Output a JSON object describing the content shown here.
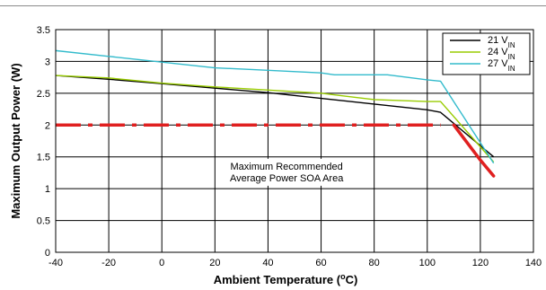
{
  "chart_data": {
    "type": "line",
    "xlabel": "Ambient Temperature (",
    "xlabel_unit_degree": "o",
    "xlabel_unit_rest": "C)",
    "ylabel": "Maximum Output Power (W)",
    "xlim": [
      -40,
      140
    ],
    "ylim": [
      0,
      3.5
    ],
    "xticks": [
      "-40",
      "-20",
      "0",
      "20",
      "40",
      "60",
      "80",
      "100",
      "120",
      "140"
    ],
    "yticks": [
      "0",
      "0.5",
      "1",
      "1.5",
      "2",
      "2.5",
      "3",
      "3.5"
    ],
    "grid": true,
    "legend_position": "top-right",
    "series": [
      {
        "name": "21 V",
        "name_sub": "IN",
        "color": "#000000",
        "x": [
          -40,
          -20,
          0,
          20,
          40,
          60,
          80,
          100,
          105,
          125
        ],
        "y": [
          2.78,
          2.72,
          2.65,
          2.58,
          2.51,
          2.42,
          2.33,
          2.24,
          2.2,
          1.5
        ]
      },
      {
        "name": "24 V",
        "name_sub": "IN",
        "color": "#99cc00",
        "x": [
          -40,
          -20,
          0,
          20,
          40,
          60,
          80,
          100,
          105,
          125
        ],
        "y": [
          2.78,
          2.74,
          2.66,
          2.6,
          2.55,
          2.5,
          2.4,
          2.37,
          2.37,
          1.42
        ]
      },
      {
        "name": "27 V",
        "name_sub": "IN",
        "color": "#33bbcc",
        "x": [
          -40,
          -20,
          0,
          20,
          40,
          60,
          65,
          85,
          100,
          105,
          125
        ],
        "y": [
          3.17,
          3.08,
          2.99,
          2.9,
          2.86,
          2.82,
          2.79,
          2.79,
          2.71,
          2.69,
          1.4
        ]
      }
    ],
    "reference": {
      "color": "#e02020",
      "x": [
        -40,
        105,
        110,
        120,
        125
      ],
      "y": [
        2.0,
        2.0,
        2.0,
        1.45,
        1.2
      ]
    },
    "annotation": {
      "lines": [
        "Maximum Recommended",
        "Average Power SOA Area"
      ],
      "x": 47,
      "y": 1.3
    }
  }
}
